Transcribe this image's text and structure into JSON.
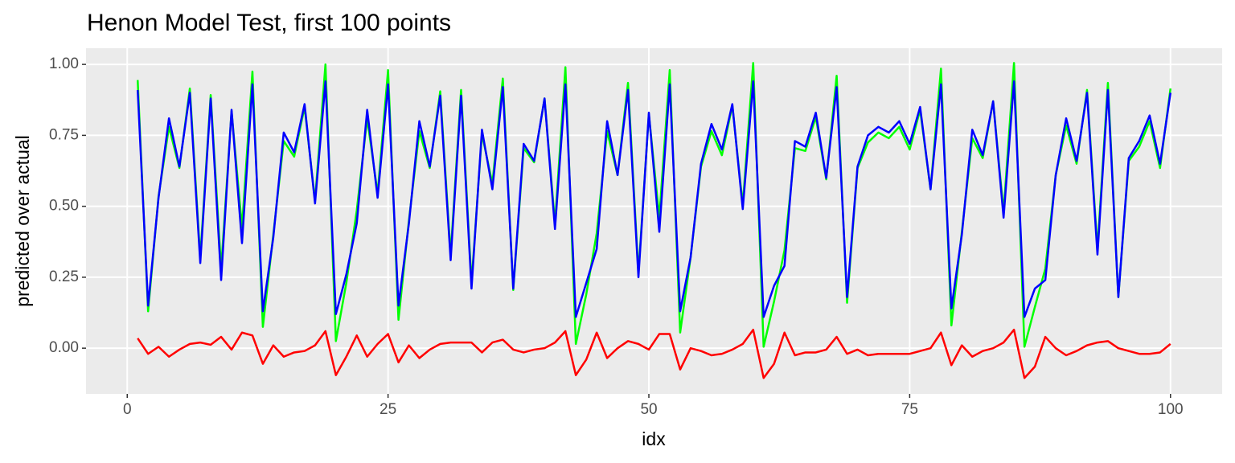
{
  "chart_data": {
    "type": "line",
    "title": "Henon Model Test, first 100 points",
    "x_label": "idx",
    "y_label": "predicted over actual",
    "x": [
      1,
      2,
      3,
      4,
      5,
      6,
      7,
      8,
      9,
      10,
      11,
      12,
      13,
      14,
      15,
      16,
      17,
      18,
      19,
      20,
      21,
      22,
      23,
      24,
      25,
      26,
      27,
      28,
      29,
      30,
      31,
      32,
      33,
      34,
      35,
      36,
      37,
      38,
      39,
      40,
      41,
      42,
      43,
      44,
      45,
      46,
      47,
      48,
      49,
      50,
      51,
      52,
      53,
      54,
      55,
      56,
      57,
      58,
      59,
      60,
      61,
      62,
      63,
      64,
      65,
      66,
      67,
      68,
      69,
      70,
      71,
      72,
      73,
      74,
      75,
      76,
      77,
      78,
      79,
      80,
      81,
      82,
      83,
      84,
      85,
      86,
      87,
      88,
      89,
      90,
      91,
      92,
      93,
      94,
      95,
      96,
      97,
      98,
      99,
      100
    ],
    "series": [
      {
        "color": "#00ff00",
        "values": [
          0.945,
          0.13,
          0.535,
          0.78,
          0.635,
          0.915,
          0.32,
          0.892,
          0.28,
          0.835,
          0.425,
          0.975,
          0.075,
          0.4,
          0.73,
          0.675,
          0.85,
          0.52,
          1.0,
          0.025,
          0.23,
          0.485,
          0.81,
          0.545,
          0.98,
          0.1,
          0.45,
          0.765,
          0.635,
          0.905,
          0.33,
          0.91,
          0.23,
          0.755,
          0.58,
          0.95,
          0.205,
          0.705,
          0.655,
          0.88,
          0.44,
          0.99,
          0.015,
          0.19,
          0.405,
          0.765,
          0.61,
          0.935,
          0.265,
          0.825,
          0.46,
          0.98,
          0.055,
          0.32,
          0.64,
          0.765,
          0.68,
          0.855,
          0.505,
          1.005,
          0.005,
          0.165,
          0.345,
          0.705,
          0.695,
          0.815,
          0.595,
          0.96,
          0.16,
          0.635,
          0.725,
          0.76,
          0.74,
          0.78,
          0.7,
          0.84,
          0.56,
          0.985,
          0.08,
          0.41,
          0.74,
          0.67,
          0.87,
          0.48,
          1.005,
          0.005,
          0.145,
          0.28,
          0.61,
          0.785,
          0.65,
          0.91,
          0.35,
          0.935,
          0.18,
          0.66,
          0.71,
          0.8,
          0.635,
          0.915
        ]
      },
      {
        "color": "#0000ff",
        "values": [
          0.91,
          0.15,
          0.53,
          0.81,
          0.64,
          0.9,
          0.3,
          0.88,
          0.24,
          0.84,
          0.37,
          0.93,
          0.13,
          0.39,
          0.76,
          0.69,
          0.86,
          0.51,
          0.94,
          0.12,
          0.26,
          0.44,
          0.84,
          0.53,
          0.93,
          0.15,
          0.44,
          0.8,
          0.64,
          0.89,
          0.31,
          0.89,
          0.21,
          0.77,
          0.56,
          0.92,
          0.21,
          0.72,
          0.66,
          0.88,
          0.42,
          0.93,
          0.11,
          0.23,
          0.35,
          0.8,
          0.61,
          0.91,
          0.25,
          0.83,
          0.41,
          0.93,
          0.13,
          0.32,
          0.65,
          0.79,
          0.7,
          0.86,
          0.49,
          0.94,
          0.11,
          0.22,
          0.29,
          0.73,
          0.71,
          0.83,
          0.6,
          0.92,
          0.18,
          0.64,
          0.75,
          0.78,
          0.76,
          0.8,
          0.72,
          0.85,
          0.56,
          0.93,
          0.14,
          0.4,
          0.77,
          0.68,
          0.87,
          0.46,
          0.94,
          0.11,
          0.21,
          0.24,
          0.61,
          0.81,
          0.66,
          0.9,
          0.33,
          0.91,
          0.18,
          0.67,
          0.73,
          0.82,
          0.65,
          0.9
        ]
      },
      {
        "color": "#ff0000",
        "values": [
          0.035,
          -0.02,
          0.005,
          -0.03,
          -0.005,
          0.015,
          0.02,
          0.012,
          0.04,
          -0.005,
          0.055,
          0.045,
          -0.055,
          0.01,
          -0.03,
          -0.015,
          -0.01,
          0.01,
          0.06,
          -0.095,
          -0.03,
          0.045,
          -0.03,
          0.015,
          0.05,
          -0.05,
          0.01,
          -0.035,
          -0.005,
          0.015,
          0.02,
          0.02,
          0.02,
          -0.015,
          0.02,
          0.03,
          -0.005,
          -0.015,
          -0.005,
          0.0,
          0.02,
          0.06,
          -0.095,
          -0.04,
          0.055,
          -0.035,
          0.0,
          0.025,
          0.015,
          -0.005,
          0.05,
          0.05,
          -0.075,
          0.0,
          -0.01,
          -0.025,
          -0.02,
          -0.005,
          0.015,
          0.065,
          -0.105,
          -0.055,
          0.055,
          -0.025,
          -0.015,
          -0.015,
          -0.005,
          0.04,
          -0.02,
          -0.005,
          -0.025,
          -0.02,
          -0.02,
          -0.02,
          -0.02,
          -0.01,
          0.0,
          0.055,
          -0.06,
          0.01,
          -0.03,
          -0.01,
          0.0,
          0.02,
          0.065,
          -0.105,
          -0.065,
          0.04,
          0.0,
          -0.025,
          -0.01,
          0.01,
          0.02,
          0.025,
          0.0,
          -0.01,
          -0.02,
          -0.02,
          -0.015,
          0.015
        ]
      }
    ],
    "xlim": [
      -3.95,
      104.95
    ],
    "ylim": [
      -0.161,
      1.057
    ],
    "xticks": [
      0,
      25,
      50,
      75,
      100
    ],
    "yticks": [
      {
        "value": 0,
        "label": "0.00"
      },
      {
        "value": 0.25,
        "label": "0.25"
      },
      {
        "value": 0.5,
        "label": "0.50"
      },
      {
        "value": 0.75,
        "label": "0.75"
      },
      {
        "value": 1,
        "label": "1.00"
      }
    ],
    "grid": true
  }
}
